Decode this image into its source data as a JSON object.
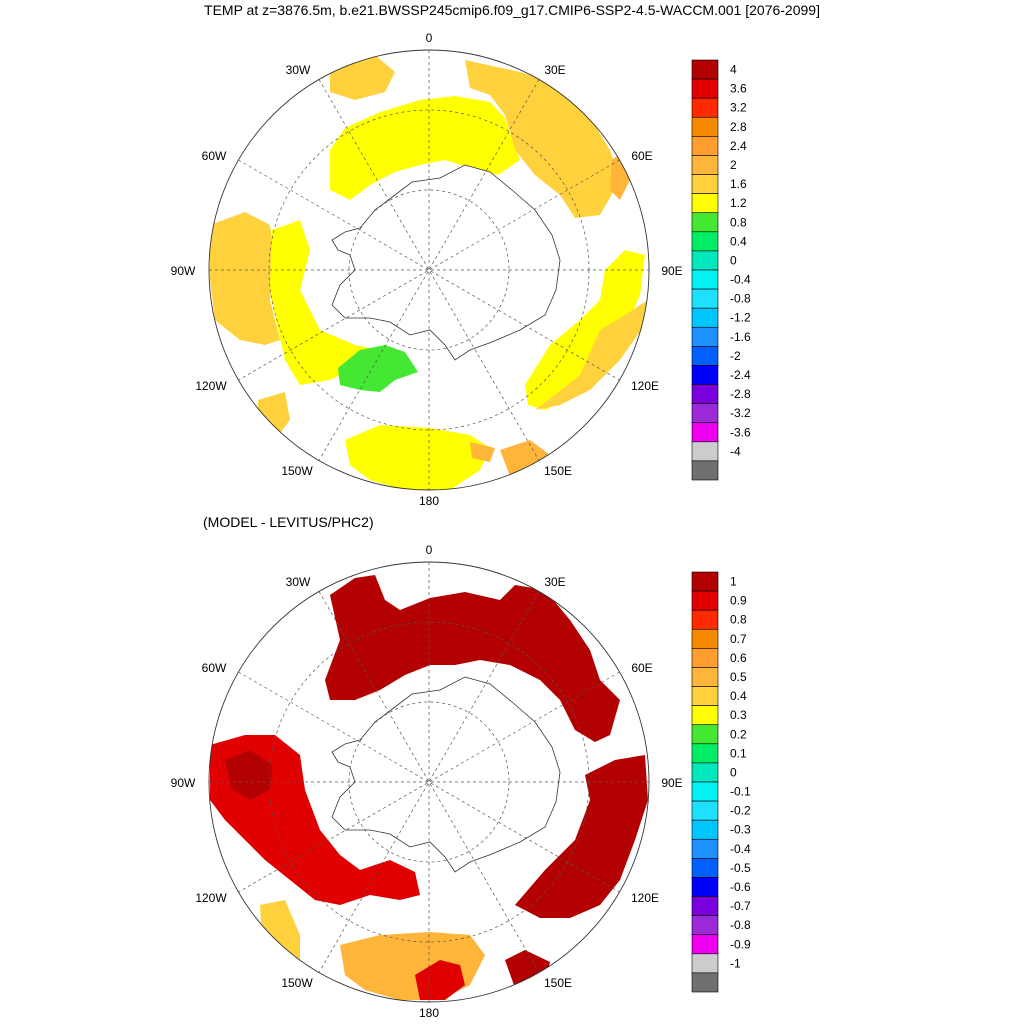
{
  "title": "TEMP at z=3876.5m, b.e21.BWSSP245cmip6.f09_g17.CMIP6-SSP2-4.5-WACCM.001 [2076-2099]",
  "panels": [
    {
      "id": "model",
      "subtitle": "",
      "lon_labels": [
        "0",
        "30E",
        "60E",
        "90E",
        "120E",
        "150E",
        "180",
        "150W",
        "120W",
        "90W",
        "60W",
        "30W"
      ],
      "colorbar_labels": [
        "4",
        "3.6",
        "3.2",
        "2.8",
        "2.4",
        "2",
        "1.6",
        "1.2",
        "0.8",
        "0.4",
        "0",
        "-0.4",
        "-0.8",
        "-1.2",
        "-1.6",
        "-2",
        "-2.4",
        "-2.8",
        "-3.2",
        "-3.6",
        "-4"
      ],
      "colors": [
        "#b30000",
        "#e00000",
        "#ff2a00",
        "#f58a00",
        "#ff9d2e",
        "#ffb43a",
        "#ffd23d",
        "#ffff00",
        "#44e833",
        "#00ee66",
        "#00e8bc",
        "#00f2f2",
        "#1ee0ff",
        "#00c6ff",
        "#1e90ff",
        "#0060ff",
        "#0000ff",
        "#7a00dd",
        "#9c2ad9",
        "#f000f0",
        "#cccccc",
        "#707070"
      ]
    },
    {
      "id": "difference",
      "subtitle": "(MODEL - LEVITUS/PHC2)",
      "lon_labels": [
        "0",
        "30E",
        "60E",
        "90E",
        "120E",
        "150E",
        "180",
        "150W",
        "120W",
        "90W",
        "60W",
        "30W"
      ],
      "colorbar_labels": [
        "1",
        "0.9",
        "0.8",
        "0.7",
        "0.6",
        "0.5",
        "0.4",
        "0.3",
        "0.2",
        "0.1",
        "0",
        "-0.1",
        "-0.2",
        "-0.3",
        "-0.4",
        "-0.5",
        "-0.6",
        "-0.7",
        "-0.8",
        "-0.9",
        "-1"
      ]
    }
  ]
}
